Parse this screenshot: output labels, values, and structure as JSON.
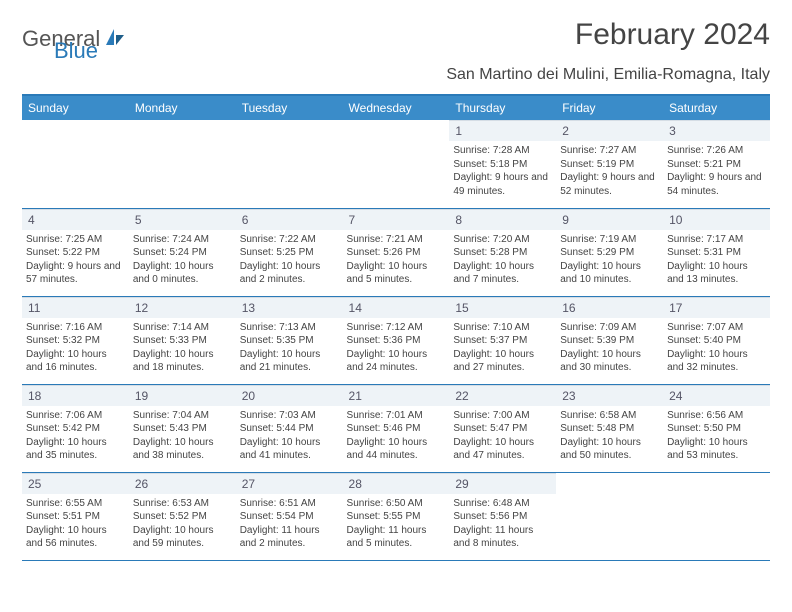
{
  "logo": {
    "part1": "General",
    "part2": "Blue"
  },
  "title": "February 2024",
  "subtitle": "San Martino dei Mulini, Emilia-Romagna, Italy",
  "colors": {
    "header_bg": "#3a8cc9",
    "accent_line": "#2a7ab8",
    "daynum_bg": "#eef3f7",
    "text": "#444444",
    "logo_gray": "#555555",
    "logo_blue": "#2a7ab8"
  },
  "day_headers": [
    "Sunday",
    "Monday",
    "Tuesday",
    "Wednesday",
    "Thursday",
    "Friday",
    "Saturday"
  ],
  "weeks": [
    [
      {
        "empty": true
      },
      {
        "empty": true
      },
      {
        "empty": true
      },
      {
        "empty": true
      },
      {
        "n": "1",
        "sr": "7:28 AM",
        "ss": "5:18 PM",
        "dl": "9 hours and 49 minutes."
      },
      {
        "n": "2",
        "sr": "7:27 AM",
        "ss": "5:19 PM",
        "dl": "9 hours and 52 minutes."
      },
      {
        "n": "3",
        "sr": "7:26 AM",
        "ss": "5:21 PM",
        "dl": "9 hours and 54 minutes."
      }
    ],
    [
      {
        "n": "4",
        "sr": "7:25 AM",
        "ss": "5:22 PM",
        "dl": "9 hours and 57 minutes."
      },
      {
        "n": "5",
        "sr": "7:24 AM",
        "ss": "5:24 PM",
        "dl": "10 hours and 0 minutes."
      },
      {
        "n": "6",
        "sr": "7:22 AM",
        "ss": "5:25 PM",
        "dl": "10 hours and 2 minutes."
      },
      {
        "n": "7",
        "sr": "7:21 AM",
        "ss": "5:26 PM",
        "dl": "10 hours and 5 minutes."
      },
      {
        "n": "8",
        "sr": "7:20 AM",
        "ss": "5:28 PM",
        "dl": "10 hours and 7 minutes."
      },
      {
        "n": "9",
        "sr": "7:19 AM",
        "ss": "5:29 PM",
        "dl": "10 hours and 10 minutes."
      },
      {
        "n": "10",
        "sr": "7:17 AM",
        "ss": "5:31 PM",
        "dl": "10 hours and 13 minutes."
      }
    ],
    [
      {
        "n": "11",
        "sr": "7:16 AM",
        "ss": "5:32 PM",
        "dl": "10 hours and 16 minutes."
      },
      {
        "n": "12",
        "sr": "7:14 AM",
        "ss": "5:33 PM",
        "dl": "10 hours and 18 minutes."
      },
      {
        "n": "13",
        "sr": "7:13 AM",
        "ss": "5:35 PM",
        "dl": "10 hours and 21 minutes."
      },
      {
        "n": "14",
        "sr": "7:12 AM",
        "ss": "5:36 PM",
        "dl": "10 hours and 24 minutes."
      },
      {
        "n": "15",
        "sr": "7:10 AM",
        "ss": "5:37 PM",
        "dl": "10 hours and 27 minutes."
      },
      {
        "n": "16",
        "sr": "7:09 AM",
        "ss": "5:39 PM",
        "dl": "10 hours and 30 minutes."
      },
      {
        "n": "17",
        "sr": "7:07 AM",
        "ss": "5:40 PM",
        "dl": "10 hours and 32 minutes."
      }
    ],
    [
      {
        "n": "18",
        "sr": "7:06 AM",
        "ss": "5:42 PM",
        "dl": "10 hours and 35 minutes."
      },
      {
        "n": "19",
        "sr": "7:04 AM",
        "ss": "5:43 PM",
        "dl": "10 hours and 38 minutes."
      },
      {
        "n": "20",
        "sr": "7:03 AM",
        "ss": "5:44 PM",
        "dl": "10 hours and 41 minutes."
      },
      {
        "n": "21",
        "sr": "7:01 AM",
        "ss": "5:46 PM",
        "dl": "10 hours and 44 minutes."
      },
      {
        "n": "22",
        "sr": "7:00 AM",
        "ss": "5:47 PM",
        "dl": "10 hours and 47 minutes."
      },
      {
        "n": "23",
        "sr": "6:58 AM",
        "ss": "5:48 PM",
        "dl": "10 hours and 50 minutes."
      },
      {
        "n": "24",
        "sr": "6:56 AM",
        "ss": "5:50 PM",
        "dl": "10 hours and 53 minutes."
      }
    ],
    [
      {
        "n": "25",
        "sr": "6:55 AM",
        "ss": "5:51 PM",
        "dl": "10 hours and 56 minutes."
      },
      {
        "n": "26",
        "sr": "6:53 AM",
        "ss": "5:52 PM",
        "dl": "10 hours and 59 minutes."
      },
      {
        "n": "27",
        "sr": "6:51 AM",
        "ss": "5:54 PM",
        "dl": "11 hours and 2 minutes."
      },
      {
        "n": "28",
        "sr": "6:50 AM",
        "ss": "5:55 PM",
        "dl": "11 hours and 5 minutes."
      },
      {
        "n": "29",
        "sr": "6:48 AM",
        "ss": "5:56 PM",
        "dl": "11 hours and 8 minutes."
      },
      {
        "empty": true
      },
      {
        "empty": true
      }
    ]
  ],
  "labels": {
    "sunrise": "Sunrise:",
    "sunset": "Sunset:",
    "daylight": "Daylight:"
  }
}
